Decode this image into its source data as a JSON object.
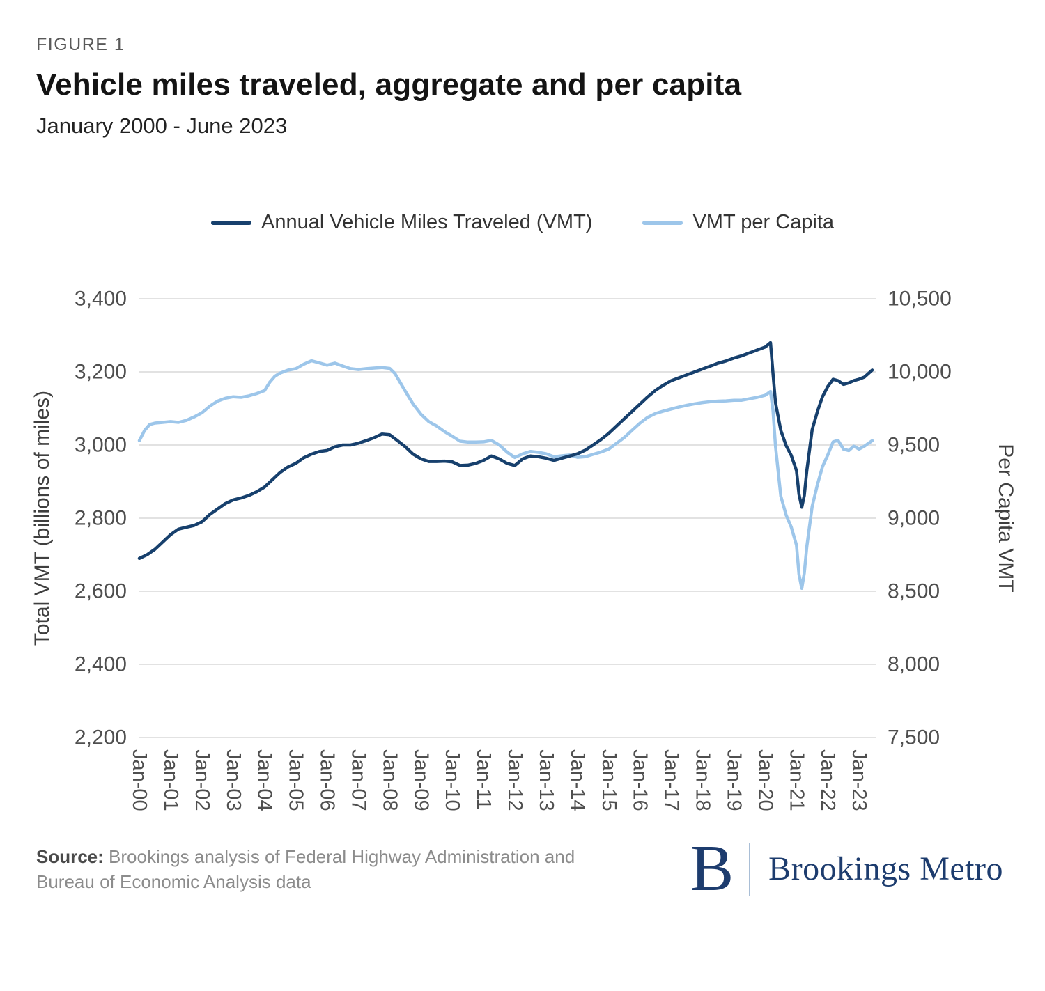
{
  "figure_label": "FIGURE 1",
  "title": "Vehicle miles traveled, aggregate and per capita",
  "subtitle": "January 2000 - June 2023",
  "legend": [
    {
      "id": "annual-vmt",
      "label": "Annual Vehicle Miles Traveled (VMT)",
      "color": "#17406d"
    },
    {
      "id": "vmt-per-capita",
      "label": "VMT per Capita",
      "color": "#9dc6ea"
    }
  ],
  "footer": {
    "source_label": "Source:",
    "source_text": "Brookings analysis of Federal Highway Administration and Bureau of Economic Analysis data",
    "logo_letter": "B",
    "logo_text": "Brookings Metro",
    "logo_color": "#1d3c6e"
  },
  "chart_data": {
    "type": "line",
    "title": "Vehicle miles traveled, aggregate and per capita",
    "subtitle": "January 2000 - June 2023",
    "x_unit": "years since Jan-2000 (monthly samples)",
    "x_max": 23.42,
    "grid": true,
    "legend_position": "top-center",
    "style": {
      "grid_color": "#d9d9d9",
      "tick_color": "#4f4f4f",
      "axis_title_color": "#3f3f3f"
    },
    "x_tick_labels": [
      "Jan-00",
      "Jan-01",
      "Jan-02",
      "Jan-03",
      "Jan-04",
      "Jan-05",
      "Jan-06",
      "Jan-07",
      "Jan-08",
      "Jan-09",
      "Jan-10",
      "Jan-11",
      "Jan-12",
      "Jan-13",
      "Jan-14",
      "Jan-15",
      "Jan-16",
      "Jan-17",
      "Jan-18",
      "Jan-19",
      "Jan-20",
      "Jan-21",
      "Jan-22",
      "Jan-23"
    ],
    "left_axis": {
      "title": "Total VMT (billions of miles)",
      "min": 2200,
      "max": 3400,
      "ticks": [
        {
          "value": 3400,
          "label": "3,400"
        },
        {
          "value": 3200,
          "label": "3,200"
        },
        {
          "value": 3000,
          "label": "3,000"
        },
        {
          "value": 2800,
          "label": "2,800"
        },
        {
          "value": 2600,
          "label": "2,600"
        },
        {
          "value": 2400,
          "label": "2,400"
        },
        {
          "value": 2200,
          "label": "2,200"
        }
      ]
    },
    "right_axis": {
      "title": "Per Capita VMT",
      "min": 7500,
      "max": 10500,
      "ticks": [
        {
          "value": 10500,
          "label": "10,500"
        },
        {
          "value": 10000,
          "label": "10,000"
        },
        {
          "value": 9500,
          "label": "9,500"
        },
        {
          "value": 9000,
          "label": "9,000"
        },
        {
          "value": 8500,
          "label": "8,500"
        },
        {
          "value": 8000,
          "label": "8,000"
        },
        {
          "value": 7500,
          "label": "7,500"
        }
      ]
    },
    "series": [
      {
        "id": "annual-vmt",
        "name": "Annual Vehicle Miles Traveled (VMT)",
        "axis": "left",
        "color": "#17406d",
        "points": [
          [
            0,
            2690
          ],
          [
            0.25,
            2700
          ],
          [
            0.5,
            2715
          ],
          [
            0.75,
            2735
          ],
          [
            1,
            2755
          ],
          [
            1.25,
            2770
          ],
          [
            1.5,
            2775
          ],
          [
            1.75,
            2780
          ],
          [
            2,
            2790
          ],
          [
            2.25,
            2810
          ],
          [
            2.5,
            2825
          ],
          [
            2.75,
            2840
          ],
          [
            3,
            2850
          ],
          [
            3.25,
            2855
          ],
          [
            3.5,
            2862
          ],
          [
            3.75,
            2872
          ],
          [
            4,
            2885
          ],
          [
            4.25,
            2905
          ],
          [
            4.5,
            2925
          ],
          [
            4.75,
            2940
          ],
          [
            5,
            2950
          ],
          [
            5.25,
            2965
          ],
          [
            5.5,
            2975
          ],
          [
            5.75,
            2982
          ],
          [
            6,
            2985
          ],
          [
            6.25,
            2995
          ],
          [
            6.5,
            3000
          ],
          [
            6.75,
            3000
          ],
          [
            7,
            3005
          ],
          [
            7.25,
            3012
          ],
          [
            7.5,
            3020
          ],
          [
            7.75,
            3030
          ],
          [
            8,
            3028
          ],
          [
            8.25,
            3012
          ],
          [
            8.5,
            2995
          ],
          [
            8.75,
            2975
          ],
          [
            9,
            2962
          ],
          [
            9.25,
            2955
          ],
          [
            9.5,
            2955
          ],
          [
            9.75,
            2956
          ],
          [
            10,
            2954
          ],
          [
            10.25,
            2944
          ],
          [
            10.5,
            2945
          ],
          [
            10.75,
            2950
          ],
          [
            11,
            2958
          ],
          [
            11.25,
            2970
          ],
          [
            11.5,
            2962
          ],
          [
            11.75,
            2950
          ],
          [
            12,
            2944
          ],
          [
            12.25,
            2962
          ],
          [
            12.5,
            2970
          ],
          [
            12.75,
            2968
          ],
          [
            13,
            2964
          ],
          [
            13.25,
            2958
          ],
          [
            13.5,
            2964
          ],
          [
            13.75,
            2970
          ],
          [
            14,
            2976
          ],
          [
            14.25,
            2986
          ],
          [
            14.5,
            3000
          ],
          [
            14.75,
            3015
          ],
          [
            15,
            3032
          ],
          [
            15.25,
            3052
          ],
          [
            15.5,
            3072
          ],
          [
            15.75,
            3092
          ],
          [
            16,
            3112
          ],
          [
            16.25,
            3132
          ],
          [
            16.5,
            3150
          ],
          [
            16.75,
            3164
          ],
          [
            17,
            3176
          ],
          [
            17.25,
            3184
          ],
          [
            17.5,
            3192
          ],
          [
            17.75,
            3200
          ],
          [
            18,
            3208
          ],
          [
            18.25,
            3216
          ],
          [
            18.5,
            3224
          ],
          [
            18.75,
            3230
          ],
          [
            19,
            3238
          ],
          [
            19.25,
            3244
          ],
          [
            19.5,
            3252
          ],
          [
            19.75,
            3260
          ],
          [
            20,
            3268
          ],
          [
            20.17,
            3280
          ],
          [
            20.25,
            3195
          ],
          [
            20.33,
            3115
          ],
          [
            20.5,
            3040
          ],
          [
            20.67,
            2998
          ],
          [
            20.83,
            2972
          ],
          [
            21,
            2930
          ],
          [
            21.08,
            2865
          ],
          [
            21.17,
            2830
          ],
          [
            21.25,
            2862
          ],
          [
            21.33,
            2930
          ],
          [
            21.5,
            3042
          ],
          [
            21.67,
            3092
          ],
          [
            21.83,
            3132
          ],
          [
            22,
            3160
          ],
          [
            22.17,
            3180
          ],
          [
            22.33,
            3176
          ],
          [
            22.5,
            3166
          ],
          [
            22.67,
            3170
          ],
          [
            22.83,
            3176
          ],
          [
            23,
            3180
          ],
          [
            23.17,
            3186
          ],
          [
            23.42,
            3205
          ]
        ]
      },
      {
        "id": "vmt-per-capita",
        "name": "VMT per Capita",
        "axis": "right",
        "color": "#9dc6ea",
        "points": [
          [
            0,
            9530
          ],
          [
            0.17,
            9600
          ],
          [
            0.33,
            9640
          ],
          [
            0.5,
            9650
          ],
          [
            0.75,
            9655
          ],
          [
            1,
            9660
          ],
          [
            1.25,
            9655
          ],
          [
            1.5,
            9668
          ],
          [
            1.75,
            9692
          ],
          [
            2,
            9720
          ],
          [
            2.25,
            9765
          ],
          [
            2.5,
            9800
          ],
          [
            2.75,
            9820
          ],
          [
            3,
            9830
          ],
          [
            3.25,
            9826
          ],
          [
            3.5,
            9836
          ],
          [
            3.75,
            9852
          ],
          [
            4,
            9872
          ],
          [
            4.17,
            9930
          ],
          [
            4.33,
            9970
          ],
          [
            4.5,
            9992
          ],
          [
            4.75,
            10012
          ],
          [
            5,
            10022
          ],
          [
            5.25,
            10052
          ],
          [
            5.5,
            10076
          ],
          [
            5.75,
            10062
          ],
          [
            6,
            10046
          ],
          [
            6.25,
            10060
          ],
          [
            6.5,
            10040
          ],
          [
            6.75,
            10022
          ],
          [
            7,
            10016
          ],
          [
            7.25,
            10022
          ],
          [
            7.5,
            10026
          ],
          [
            7.75,
            10030
          ],
          [
            8,
            10024
          ],
          [
            8.17,
            9988
          ],
          [
            8.33,
            9930
          ],
          [
            8.5,
            9868
          ],
          [
            8.75,
            9780
          ],
          [
            9,
            9710
          ],
          [
            9.25,
            9660
          ],
          [
            9.5,
            9630
          ],
          [
            9.75,
            9592
          ],
          [
            10,
            9560
          ],
          [
            10.25,
            9526
          ],
          [
            10.5,
            9520
          ],
          [
            10.75,
            9520
          ],
          [
            11,
            9522
          ],
          [
            11.25,
            9532
          ],
          [
            11.5,
            9500
          ],
          [
            11.75,
            9452
          ],
          [
            12,
            9415
          ],
          [
            12.25,
            9440
          ],
          [
            12.5,
            9456
          ],
          [
            12.75,
            9450
          ],
          [
            13,
            9440
          ],
          [
            13.25,
            9420
          ],
          [
            13.5,
            9426
          ],
          [
            13.75,
            9432
          ],
          [
            14,
            9416
          ],
          [
            14.25,
            9420
          ],
          [
            14.5,
            9436
          ],
          [
            14.75,
            9452
          ],
          [
            15,
            9472
          ],
          [
            15.25,
            9512
          ],
          [
            15.5,
            9552
          ],
          [
            15.75,
            9602
          ],
          [
            16,
            9650
          ],
          [
            16.25,
            9690
          ],
          [
            16.5,
            9716
          ],
          [
            16.75,
            9732
          ],
          [
            17,
            9746
          ],
          [
            17.25,
            9760
          ],
          [
            17.5,
            9772
          ],
          [
            17.75,
            9782
          ],
          [
            18,
            9790
          ],
          [
            18.25,
            9796
          ],
          [
            18.5,
            9800
          ],
          [
            18.75,
            9802
          ],
          [
            19,
            9806
          ],
          [
            19.25,
            9806
          ],
          [
            19.5,
            9816
          ],
          [
            19.75,
            9826
          ],
          [
            20,
            9840
          ],
          [
            20.17,
            9866
          ],
          [
            20.25,
            9735
          ],
          [
            20.33,
            9490
          ],
          [
            20.5,
            9150
          ],
          [
            20.67,
            9020
          ],
          [
            20.83,
            8940
          ],
          [
            21,
            8815
          ],
          [
            21.08,
            8615
          ],
          [
            21.17,
            8520
          ],
          [
            21.25,
            8625
          ],
          [
            21.33,
            8805
          ],
          [
            21.5,
            9080
          ],
          [
            21.67,
            9230
          ],
          [
            21.83,
            9352
          ],
          [
            22,
            9432
          ],
          [
            22.17,
            9522
          ],
          [
            22.33,
            9532
          ],
          [
            22.5,
            9472
          ],
          [
            22.67,
            9462
          ],
          [
            22.83,
            9492
          ],
          [
            23,
            9472
          ],
          [
            23.17,
            9492
          ],
          [
            23.42,
            9530
          ]
        ]
      }
    ]
  }
}
